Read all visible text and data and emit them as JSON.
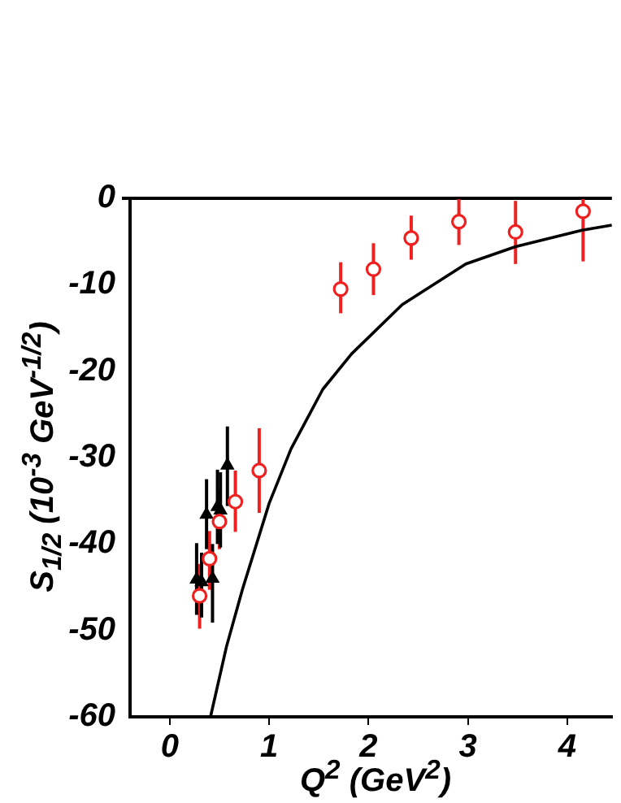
{
  "chart_data": {
    "type": "scatter",
    "xlabel": "Q$^{2}$ (GeV$^{2}$)",
    "ylabel": "S$_{1/2}$ (10$^{-3}$ GeV$^{-1/2}$)",
    "xlim": [
      -0.4,
      4.45
    ],
    "xticks": [
      0,
      1,
      2,
      3,
      4
    ],
    "ylim": [
      -60,
      0
    ],
    "yticks": [
      -60,
      -50,
      -40,
      -30,
      -20,
      -10,
      0
    ],
    "grid": false,
    "legend": false,
    "series": [
      {
        "type": "scatter",
        "color": "#ee2020",
        "marker": "circle",
        "x": [
          0.3,
          0.4,
          0.5,
          0.66,
          0.9,
          1.72,
          2.05,
          2.43,
          2.91,
          3.48,
          4.16
        ],
        "values": [
          -46.0,
          -41.7,
          -37.4,
          -35.1,
          -31.5,
          -10.5,
          -8.2,
          -4.6,
          -2.7,
          -3.9,
          -1.5
        ],
        "errors": [
          [
            -49.8,
            -42.3
          ],
          [
            -45.3,
            -38.5
          ],
          [
            -40.6,
            -33.7
          ],
          [
            -38.6,
            -31.5
          ],
          [
            -36.4,
            -26.6
          ],
          [
            -13.3,
            -7.4
          ],
          [
            -11.2,
            -5.2
          ],
          [
            -7.1,
            -2.0
          ],
          [
            -5.4,
            -0.1
          ],
          [
            -7.6,
            -0.3
          ],
          [
            -7.3,
            -0.1
          ]
        ]
      },
      {
        "type": "scatter",
        "color": "#000000",
        "marker": "triangle",
        "x": [
          0.27,
          0.32,
          0.43,
          0.37,
          0.48,
          0.51,
          0.58
        ],
        "values": [
          -44.1,
          -44.4,
          -44.0,
          -36.6,
          -35.7,
          -36.1,
          -30.9
        ],
        "errors": [
          [
            -48.2,
            -39.9
          ],
          [
            -48.5,
            -41.0
          ],
          [
            -49.1,
            -40.0
          ],
          [
            -40.6,
            -32.5
          ],
          [
            -40.0,
            -31.4
          ],
          [
            -40.4,
            -31.7
          ],
          [
            -35.6,
            -26.4
          ]
        ]
      },
      {
        "type": "line",
        "color": "#000000",
        "marker": "none",
        "x": [
          0.41,
          0.57,
          0.73,
          1.0,
          1.22,
          1.54,
          1.83,
          2.34,
          2.98,
          3.48,
          4.15,
          4.45
        ],
        "values": [
          -60,
          -51.9,
          -45.3,
          -35.3,
          -29.0,
          -22.1,
          -18.0,
          -12.3,
          -7.6,
          -5.6,
          -3.7,
          -3.1
        ]
      }
    ]
  }
}
